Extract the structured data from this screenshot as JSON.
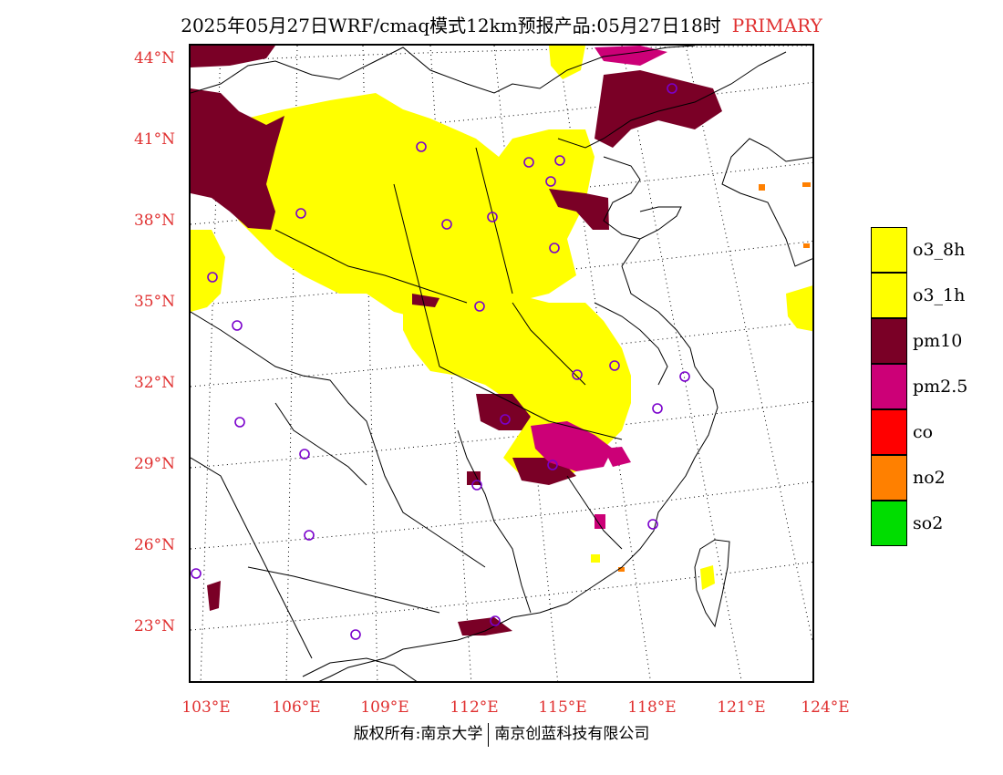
{
  "title": {
    "main": "2025年05月27日WRF/cmaq模式12km预报产品:05月27日18时",
    "primary": "PRIMARY"
  },
  "axes": {
    "latitudes": [
      "44°N",
      "41°N",
      "38°N",
      "35°N",
      "32°N",
      "29°N",
      "26°N",
      "23°N"
    ],
    "longitudes": [
      "103°E",
      "106°E",
      "109°E",
      "112°E",
      "115°E",
      "118°E",
      "121°E",
      "124°E"
    ]
  },
  "legend": [
    {
      "label": "o3_8h",
      "color": "#ffff00"
    },
    {
      "label": "o3_1h",
      "color": "#ffff00"
    },
    {
      "label": "pm10",
      "color": "#7a0026"
    },
    {
      "label": "pm2.5",
      "color": "#cc0077"
    },
    {
      "label": "co",
      "color": "#ff0000"
    },
    {
      "label": "no2",
      "color": "#ff8000"
    },
    {
      "label": "so2",
      "color": "#00dd00"
    }
  ],
  "footer": {
    "left": "版权所有:南京大学",
    "right": "南京创蓝科技有限公司"
  },
  "colors": {
    "axis_label": "#e03030",
    "station_marker": "#7a00cc"
  }
}
